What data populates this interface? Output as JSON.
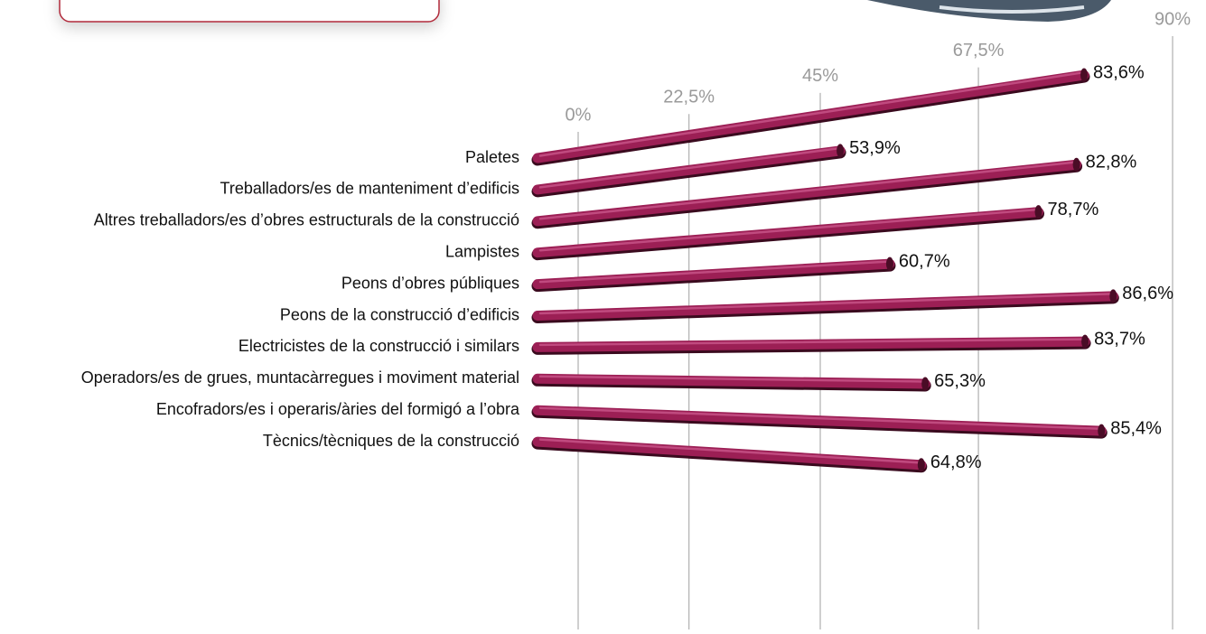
{
  "chart_data": {
    "type": "bar",
    "categories": [
      "Paletes",
      "Treballadors/es de manteniment d’edificis",
      "Altres treballadors/es d’obres estructurals de la construcció",
      "Lampistes",
      "Peons d’obres públiques",
      "Peons de la construcció d’edificis",
      "Electricistes de la construcció i similars",
      "Operadors/es de grues, muntacàrregues i moviment material",
      "Encofradors/es i operaris/àries del formigó a l’obra",
      "Tècnics/tècniques de la construcció"
    ],
    "values": [
      83.6,
      53.9,
      82.8,
      78.7,
      60.7,
      86.6,
      83.7,
      65.3,
      85.4,
      64.8
    ],
    "value_labels": [
      "83,6%",
      "53,9%",
      "82,8%",
      "78,7%",
      "60,7%",
      "86,6%",
      "83,7%",
      "65,3%",
      "85,4%",
      "64,8%"
    ],
    "color": "#9c1f55",
    "xlim": [
      0,
      90
    ],
    "xticks": [
      {
        "value": 0,
        "label": "0%"
      },
      {
        "value": 22.5,
        "label": "22,5%"
      },
      {
        "value": 45,
        "label": "45%"
      },
      {
        "value": 67.5,
        "label": "67,5%"
      },
      {
        "value": 90,
        "label": "90%"
      }
    ],
    "grid": true
  }
}
